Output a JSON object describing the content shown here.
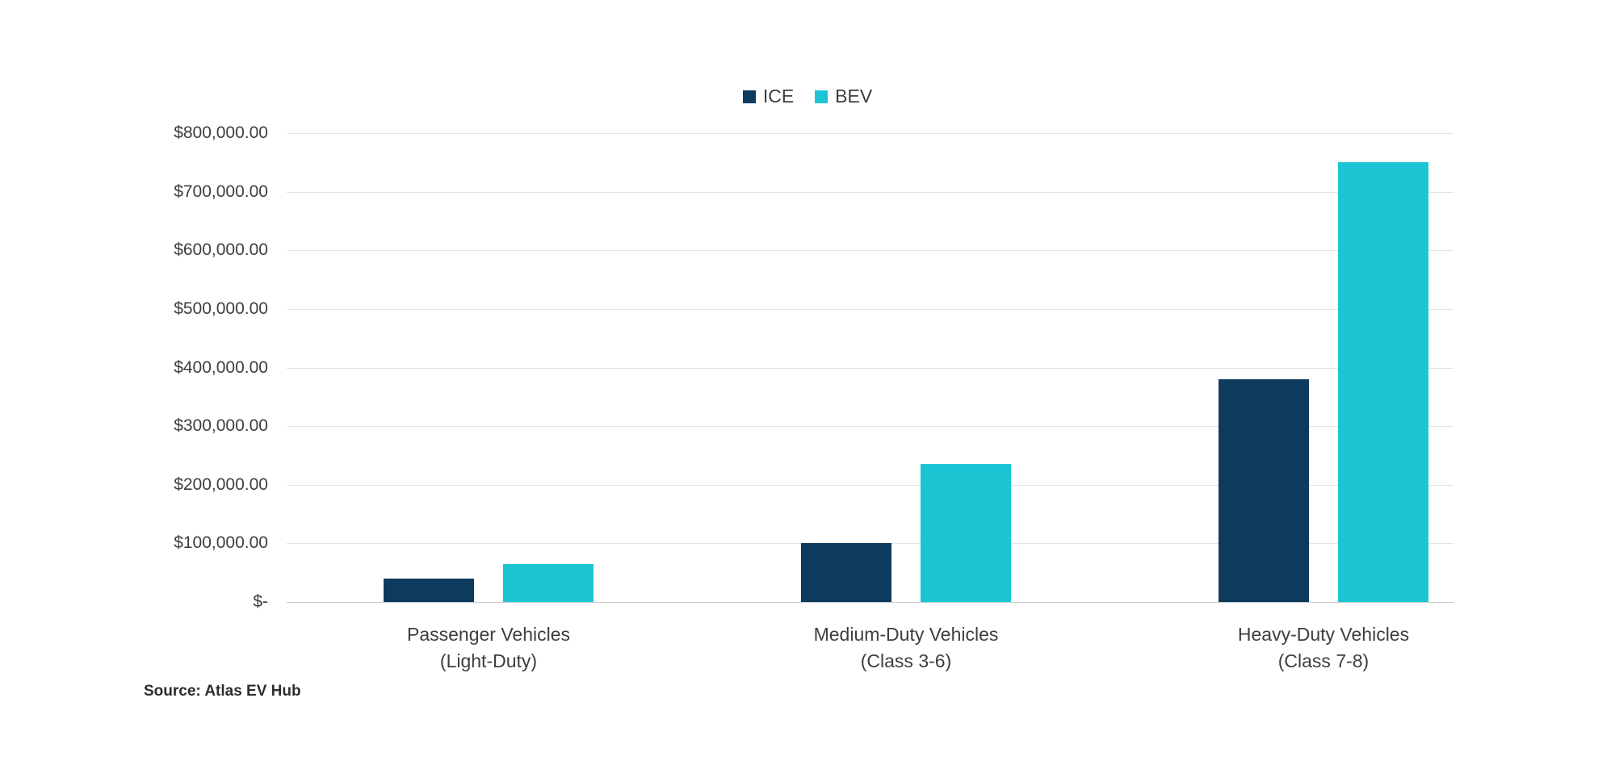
{
  "page": {
    "background": "#ffffff"
  },
  "legend": {
    "items": [
      {
        "label": "ICE",
        "color": "#0d3b5e"
      },
      {
        "label": "BEV",
        "color": "#1cc5d4"
      }
    ]
  },
  "source_note": "Source: Atlas EV Hub",
  "chart_data": {
    "type": "bar",
    "title": "",
    "xlabel": "",
    "ylabel": "",
    "categories": [
      "Passenger Vehicles (Light-Duty)",
      "Medium-Duty Vehicles (Class 3-6)",
      "Heavy-Duty Vehicles (Class 7-8)"
    ],
    "category_lines": [
      [
        "Passenger Vehicles",
        "(Light-Duty)"
      ],
      [
        "Medium-Duty Vehicles",
        "(Class 3-6)"
      ],
      [
        "Heavy-Duty Vehicles",
        "(Class 7-8)"
      ]
    ],
    "series": [
      {
        "name": "ICE",
        "color": "#0d3b5e",
        "values": [
          40000,
          100000,
          380000
        ]
      },
      {
        "name": "BEV",
        "color": "#1cc5d4",
        "values": [
          65000,
          235000,
          750000
        ]
      }
    ],
    "ylim": [
      0,
      800000
    ],
    "ytick_step": 100000,
    "ytick_labels": [
      "$800,000.00",
      "$700,000.00",
      "$600,000.00",
      "$500,000.00",
      "$400,000.00",
      "$300,000.00",
      "$200,000.00",
      "$100,000.00",
      "$-"
    ],
    "grid": true,
    "legend_position": "top-center"
  }
}
